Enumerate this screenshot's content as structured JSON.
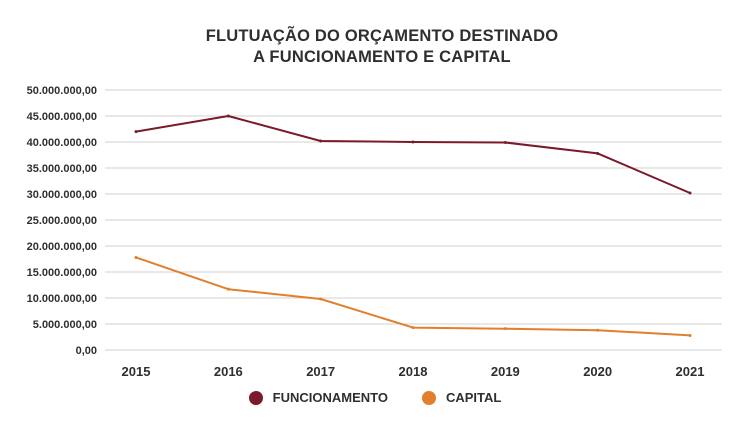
{
  "chart_data": {
    "type": "line",
    "title_lines": [
      "FLUTUAÇÃO DO ORÇAMENTO DESTINADO",
      "A FUNCIONAMENTO E CAPITAL"
    ],
    "categories": [
      "2015",
      "2016",
      "2017",
      "2018",
      "2019",
      "2020",
      "2021"
    ],
    "ylim": [
      0,
      50000000
    ],
    "yticks": [
      0,
      5000000,
      10000000,
      15000000,
      20000000,
      25000000,
      30000000,
      35000000,
      40000000,
      45000000,
      50000000
    ],
    "ytick_labels": [
      "0,00",
      "5.000.000,00",
      "10.000.000,00",
      "15.000.000,00",
      "20.000.000,00",
      "25.000.000,00",
      "30.000.000,00",
      "35.000.000,00",
      "40.000.000,00",
      "45.000.000,00",
      "50.000.000,00"
    ],
    "grid": true,
    "legend_position": "bottom",
    "series": [
      {
        "name": "FUNCIONAMENTO",
        "color": "#7b1a2c",
        "values": [
          42000000,
          45000000,
          40200000,
          40000000,
          39900000,
          37800000,
          30200000
        ]
      },
      {
        "name": "CAPITAL",
        "color": "#e07f2c",
        "values": [
          17800000,
          11700000,
          9800000,
          4300000,
          4100000,
          3800000,
          2800000
        ]
      }
    ]
  }
}
